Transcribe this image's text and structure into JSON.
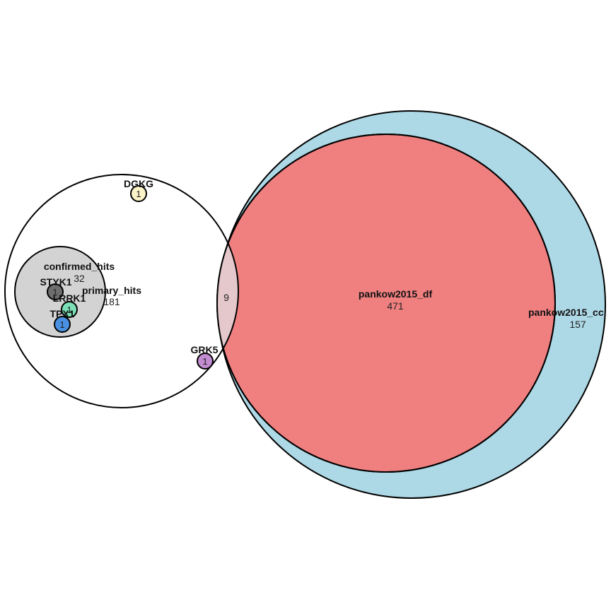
{
  "diagram": {
    "type": "euler",
    "sets": [
      {
        "id": "pankow2015_cc",
        "label": "pankow2015_cc",
        "count": "157",
        "color": "#add8e6"
      },
      {
        "id": "pankow2015_df",
        "label": "pankow2015_df",
        "count": "471",
        "color": "#f08080"
      },
      {
        "id": "primary_hits",
        "label": "primary_hits",
        "count": "181",
        "color": "#ffffff"
      },
      {
        "id": "confirmed_hits",
        "label": "confirmed_hits",
        "count": "32",
        "color": "#d3d3d3"
      }
    ],
    "overlap": {
      "sets": [
        "primary_hits",
        "pankow2015_df"
      ],
      "count": "9",
      "color": "#e5c8cc"
    },
    "genes": [
      {
        "id": "DGKG",
        "label": "DGKG",
        "count": "1",
        "color": "#fdf3c8"
      },
      {
        "id": "STYK1",
        "label": "STYK1",
        "count": "1",
        "color": "#6e6e6e"
      },
      {
        "id": "LRRK1",
        "label": "LRRK1",
        "count": "1",
        "color": "#7be0b5"
      },
      {
        "id": "TPX1",
        "label": "TPX1",
        "count": "1",
        "color": "#4a90e2"
      },
      {
        "id": "GRK5",
        "label": "GRK5",
        "count": "1",
        "color": "#c18cd0"
      }
    ]
  }
}
